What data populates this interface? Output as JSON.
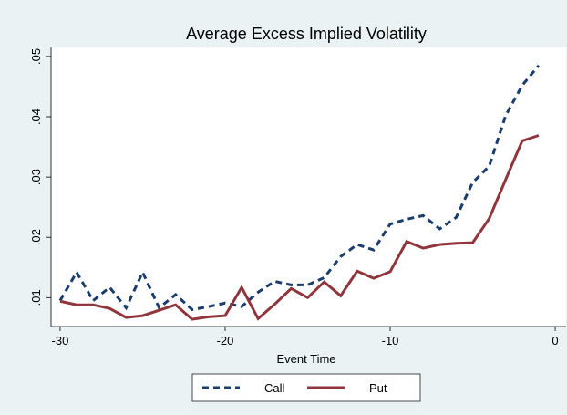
{
  "chart_data": {
    "type": "line",
    "title": "Average Excess Implied Volatility",
    "x_label": "Event Time",
    "x": [
      -30,
      -29,
      -28,
      -27,
      -26,
      -25,
      -24,
      -23,
      -22,
      -21,
      -20,
      -19,
      -18,
      -17,
      -16,
      -15,
      -14,
      -13,
      -12,
      -11,
      -10,
      -9,
      -8,
      -7,
      -6,
      -5,
      -4,
      -3,
      -2,
      -1
    ],
    "series": [
      {
        "name": "Call",
        "color": "#1a3d6d",
        "dashed": true,
        "values": [
          0.0095,
          0.0142,
          0.0095,
          0.0117,
          0.0083,
          0.0142,
          0.0083,
          0.0105,
          0.008,
          0.0085,
          0.0091,
          0.0085,
          0.0109,
          0.0127,
          0.0121,
          0.0121,
          0.0133,
          0.0168,
          0.0188,
          0.0179,
          0.0222,
          0.023,
          0.0236,
          0.0214,
          0.0233,
          0.0291,
          0.0318,
          0.0402,
          0.0452,
          0.0485
        ]
      },
      {
        "name": "Put",
        "color": "#90353b",
        "dashed": false,
        "values": [
          0.0094,
          0.0088,
          0.0088,
          0.0082,
          0.0067,
          0.007,
          0.0079,
          0.0088,
          0.0064,
          0.0068,
          0.007,
          0.0117,
          0.0065,
          0.0089,
          0.0115,
          0.01,
          0.0126,
          0.0103,
          0.0144,
          0.0132,
          0.0143,
          0.0193,
          0.0182,
          0.0188,
          0.019,
          0.0191,
          0.0231,
          0.0296,
          0.036,
          0.0369
        ]
      }
    ],
    "xlim": [
      -30.55,
      0.66
    ],
    "xticks": [
      -30,
      -20,
      -10,
      0
    ],
    "ylim": [
      0.0052,
      0.0515
    ],
    "yticks": [
      {
        "value": 0.01,
        "label": ".01"
      },
      {
        "value": 0.02,
        "label": ".02"
      },
      {
        "value": 0.03,
        "label": ".03"
      },
      {
        "value": 0.04,
        "label": ".04"
      },
      {
        "value": 0.05,
        "label": ".05"
      }
    ],
    "legend": "bottom"
  }
}
